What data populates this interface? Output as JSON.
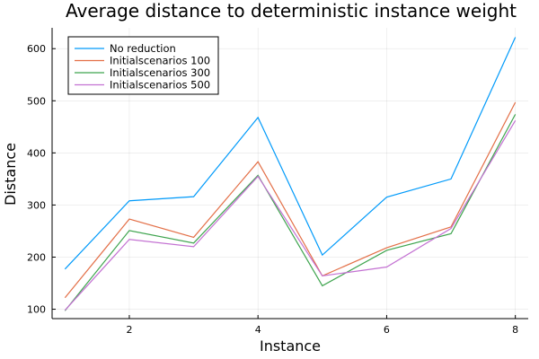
{
  "chart_data": {
    "type": "line",
    "title": "Average distance to deterministic instance weight",
    "xlabel": "Instance",
    "ylabel": "Distance",
    "x": [
      1,
      2,
      3,
      4,
      5,
      6,
      7,
      8
    ],
    "xlim": [
      0.8,
      8.2
    ],
    "ylim": [
      82,
      640
    ],
    "xticks": [
      2,
      4,
      6,
      8
    ],
    "yticks": [
      100,
      200,
      300,
      400,
      500,
      600
    ],
    "grid": true,
    "legend_position": "top-left",
    "series": [
      {
        "name": "No reduction",
        "color": "#009AFA",
        "values": [
          177,
          308,
          316,
          468,
          204,
          315,
          350,
          622
        ]
      },
      {
        "name": "Initialscenarios 100",
        "color": "#E36F47",
        "values": [
          122,
          273,
          238,
          383,
          164,
          218,
          258,
          497
        ]
      },
      {
        "name": "Initialscenarios 300",
        "color": "#3EA44E",
        "values": [
          97,
          251,
          227,
          357,
          145,
          213,
          245,
          474
        ]
      },
      {
        "name": "Initialscenarios 500",
        "color": "#C371D2",
        "values": [
          98,
          234,
          220,
          355,
          164,
          181,
          255,
          462
        ]
      }
    ]
  }
}
